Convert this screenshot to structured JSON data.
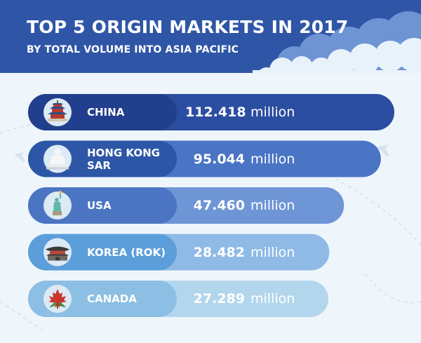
{
  "header": {
    "title": "TOP 5 ORIGIN MARKETS IN 2017",
    "subtitle": "BY TOTAL VOLUME INTO ASIA PACIFIC"
  },
  "colors": {
    "header_bg": "#2f56a6",
    "page_bg": "#eef6fb",
    "bars": [
      "#2c4ea1",
      "#4a74c4",
      "#6e96d6",
      "#8fbae6",
      "#b2d6ec"
    ],
    "left_segments": [
      "#213f8c",
      "#2d56a6",
      "#4b75c2",
      "#5b9ed9",
      "#8cbfe3"
    ]
  },
  "chart_data": {
    "type": "bar",
    "orientation": "horizontal",
    "title": "TOP 5 ORIGIN MARKETS IN 2017",
    "subtitle": "BY TOTAL VOLUME INTO ASIA PACIFIC",
    "categories": [
      "CHINA",
      "HONG KONG SAR",
      "USA",
      "KOREA (ROK)",
      "CANADA"
    ],
    "values": [
      112.418,
      95.044,
      47.46,
      28.482,
      27.289
    ],
    "value_labels": [
      "112.418",
      "95.044",
      "47.460",
      "28.482",
      "27.289"
    ],
    "unit": "million",
    "icons": [
      "temple-of-heaven-icon",
      "buddha-statue-icon",
      "statue-of-liberty-icon",
      "korean-palace-icon",
      "maple-leaf-icon"
    ],
    "grid": false,
    "legend": "none"
  }
}
